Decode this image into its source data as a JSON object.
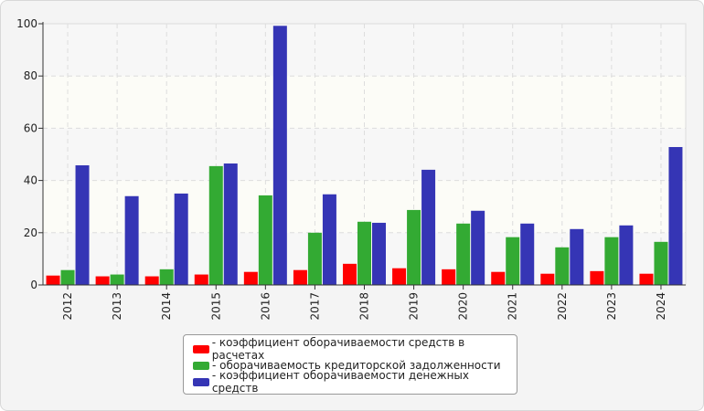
{
  "chart_data": {
    "type": "bar",
    "title": "",
    "xlabel": "",
    "ylabel": "",
    "ylim": [
      0,
      100
    ],
    "yticks": [
      0,
      20,
      40,
      60,
      80,
      100
    ],
    "grid": true,
    "legend_position": "bottom",
    "categories": [
      "2012",
      "2013",
      "2014",
      "2015",
      "2016",
      "2017",
      "2018",
      "2019",
      "2020",
      "2021",
      "2022",
      "2023",
      "2024"
    ],
    "series": [
      {
        "name": "- коэффициент оборачиваемости средств в расчетах",
        "color": "#ff0000",
        "values": [
          3.6,
          3.3,
          3.3,
          4.0,
          5.0,
          5.7,
          8.1,
          6.4,
          6.0,
          5.0,
          4.3,
          5.3,
          4.3
        ]
      },
      {
        "name": "- оборачиваемость кредиторской задолженности",
        "color": "#33aa33",
        "values": [
          5.7,
          4.0,
          6.0,
          45.5,
          34.3,
          20.0,
          24.2,
          28.7,
          23.5,
          18.3,
          14.4,
          18.3,
          16.5
        ]
      },
      {
        "name": "- коэффициент оборачиваемости денежных средств",
        "color": "#3535b5",
        "values": [
          45.8,
          34.0,
          35.0,
          46.5,
          99.2,
          34.7,
          23.8,
          44.1,
          28.4,
          23.5,
          21.4,
          22.8,
          52.8
        ]
      }
    ]
  }
}
